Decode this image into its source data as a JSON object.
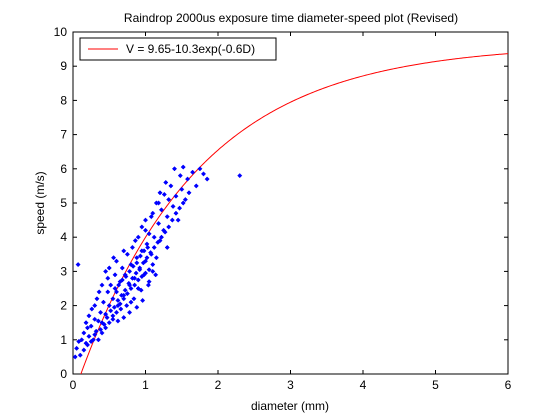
{
  "chart_data": {
    "type": "scatter",
    "title": "Raindrop 2000us exposure time diameter-speed plot (Revised)",
    "xlabel": "diameter (mm)",
    "ylabel": "speed (m/s)",
    "xlim": [
      0,
      6
    ],
    "ylim": [
      0,
      10
    ],
    "xticks": [
      "0",
      "1",
      "2",
      "3",
      "4",
      "5",
      "6"
    ],
    "yticks": [
      "0",
      "1",
      "2",
      "3",
      "4",
      "5",
      "6",
      "7",
      "8",
      "9",
      "10"
    ],
    "grid": false,
    "legend_position": "top-left",
    "series": [
      {
        "name": "V = 9.65-10.3exp(-0.6D)",
        "kind": "fit-line",
        "color": "#ff0000",
        "formula": {
          "a": 9.65,
          "b": 10.3,
          "k": 0.6
        }
      },
      {
        "kind": "scatter",
        "color": "#0000ff",
        "points": [
          [
            0.03,
            0.5
          ],
          [
            0.05,
            0.75
          ],
          [
            0.08,
            0.95
          ],
          [
            0.07,
            3.2
          ],
          [
            0.12,
            1.0
          ],
          [
            0.1,
            0.55
          ],
          [
            0.15,
            1.2
          ],
          [
            0.18,
            0.9
          ],
          [
            0.2,
            1.35
          ],
          [
            0.22,
            1.1
          ],
          [
            0.25,
            1.4
          ],
          [
            0.28,
            1.0
          ],
          [
            0.3,
            1.6
          ],
          [
            0.22,
            1.7
          ],
          [
            0.32,
            1.25
          ],
          [
            0.35,
            1.55
          ],
          [
            0.33,
            2.2
          ],
          [
            0.3,
            2.0
          ],
          [
            0.38,
            1.8
          ],
          [
            0.4,
            1.5
          ],
          [
            0.42,
            2.1
          ],
          [
            0.45,
            1.75
          ],
          [
            0.48,
            2.4
          ],
          [
            0.45,
            3.0
          ],
          [
            0.5,
            2.0
          ],
          [
            0.52,
            2.6
          ],
          [
            0.55,
            2.2
          ],
          [
            0.55,
            1.7
          ],
          [
            0.58,
            2.9
          ],
          [
            0.6,
            2.4
          ],
          [
            0.6,
            3.3
          ],
          [
            0.62,
            2.0
          ],
          [
            0.65,
            2.7
          ],
          [
            0.68,
            3.1
          ],
          [
            0.7,
            2.3
          ],
          [
            0.72,
            2.9
          ],
          [
            0.75,
            3.5
          ],
          [
            0.78,
            2.6
          ],
          [
            0.8,
            3.2
          ],
          [
            0.8,
            2.1
          ],
          [
            0.82,
            3.7
          ],
          [
            0.85,
            2.8
          ],
          [
            0.88,
            3.4
          ],
          [
            0.9,
            4.0
          ],
          [
            0.9,
            2.5
          ],
          [
            0.92,
            3.1
          ],
          [
            0.95,
            3.6
          ],
          [
            0.95,
            4.3
          ],
          [
            0.98,
            2.9
          ],
          [
            1.0,
            3.3
          ],
          [
            1.0,
            4.5
          ],
          [
            1.02,
            3.8
          ],
          [
            1.05,
            2.7
          ],
          [
            1.05,
            4.1
          ],
          [
            1.08,
            3.5
          ],
          [
            1.1,
            4.7
          ],
          [
            1.1,
            3.0
          ],
          [
            1.12,
            4.0
          ],
          [
            1.15,
            3.4
          ],
          [
            1.15,
            5.0
          ],
          [
            1.18,
            4.4
          ],
          [
            1.2,
            3.9
          ],
          [
            1.2,
            5.3
          ],
          [
            1.22,
            4.8
          ],
          [
            1.25,
            4.2
          ],
          [
            1.28,
            5.6
          ],
          [
            1.3,
            4.6
          ],
          [
            1.3,
            3.7
          ],
          [
            1.32,
            5.1
          ],
          [
            1.35,
            5.5
          ],
          [
            1.38,
            4.9
          ],
          [
            1.4,
            6.0
          ],
          [
            1.42,
            5.2
          ],
          [
            1.45,
            4.5
          ],
          [
            1.48,
            5.8
          ],
          [
            1.5,
            5.4
          ],
          [
            1.52,
            6.05
          ],
          [
            1.55,
            5.1
          ],
          [
            1.58,
            5.7
          ],
          [
            1.6,
            5.3
          ],
          [
            1.65,
            5.9
          ],
          [
            1.7,
            5.5
          ],
          [
            1.75,
            6.0
          ],
          [
            1.8,
            5.85
          ],
          [
            1.85,
            5.7
          ],
          [
            2.3,
            5.8
          ],
          [
            0.35,
            1.0
          ],
          [
            0.4,
            1.2
          ],
          [
            0.45,
            1.35
          ],
          [
            0.5,
            1.5
          ],
          [
            0.55,
            1.6
          ],
          [
            0.6,
            1.8
          ],
          [
            0.65,
            2.05
          ],
          [
            0.7,
            2.2
          ],
          [
            0.75,
            2.35
          ],
          [
            0.8,
            2.5
          ],
          [
            0.85,
            2.6
          ],
          [
            0.9,
            2.75
          ],
          [
            0.95,
            2.85
          ],
          [
            1.0,
            2.95
          ],
          [
            1.05,
            3.05
          ],
          [
            1.1,
            3.2
          ],
          [
            0.2,
            0.85
          ],
          [
            0.25,
            0.95
          ],
          [
            0.15,
            0.7
          ],
          [
            0.3,
            1.15
          ],
          [
            0.38,
            1.3
          ],
          [
            0.43,
            1.45
          ],
          [
            0.47,
            1.65
          ],
          [
            0.52,
            1.85
          ],
          [
            0.57,
            1.95
          ],
          [
            0.62,
            2.15
          ],
          [
            0.67,
            2.3
          ],
          [
            0.72,
            2.45
          ],
          [
            0.77,
            2.65
          ],
          [
            0.82,
            2.8
          ],
          [
            0.87,
            2.95
          ],
          [
            0.92,
            3.05
          ],
          [
            0.97,
            3.25
          ],
          [
            1.02,
            3.4
          ],
          [
            1.07,
            3.55
          ],
          [
            1.12,
            3.7
          ],
          [
            1.17,
            3.85
          ],
          [
            1.22,
            4.0
          ],
          [
            1.27,
            4.15
          ],
          [
            1.32,
            4.3
          ],
          [
            1.37,
            4.5
          ],
          [
            1.42,
            4.7
          ],
          [
            1.47,
            4.85
          ],
          [
            1.52,
            5.0
          ],
          [
            0.58,
            2.5
          ],
          [
            0.63,
            2.6
          ],
          [
            0.68,
            2.75
          ],
          [
            0.73,
            2.85
          ],
          [
            0.78,
            3.0
          ],
          [
            0.83,
            3.15
          ],
          [
            0.88,
            3.25
          ],
          [
            0.93,
            3.45
          ],
          [
            0.98,
            3.6
          ],
          [
            1.03,
            3.7
          ],
          [
            0.66,
            1.9
          ],
          [
            0.74,
            2.0
          ],
          [
            0.84,
            2.2
          ],
          [
            0.94,
            2.45
          ],
          [
            1.04,
            2.6
          ],
          [
            1.14,
            2.9
          ],
          [
            0.5,
            3.1
          ],
          [
            0.56,
            3.4
          ],
          [
            0.7,
            3.6
          ],
          [
            0.86,
            3.9
          ],
          [
            1.0,
            4.2
          ],
          [
            1.08,
            4.6
          ],
          [
            1.18,
            5.0
          ],
          [
            1.26,
            5.25
          ],
          [
            0.62,
            1.55
          ],
          [
            0.7,
            1.65
          ],
          [
            0.78,
            1.8
          ],
          [
            0.88,
            1.95
          ],
          [
            0.96,
            2.15
          ],
          [
            0.4,
            2.6
          ],
          [
            0.48,
            2.8
          ],
          [
            0.36,
            2.4
          ],
          [
            0.26,
            1.9
          ],
          [
            0.18,
            1.5
          ]
        ]
      }
    ]
  }
}
